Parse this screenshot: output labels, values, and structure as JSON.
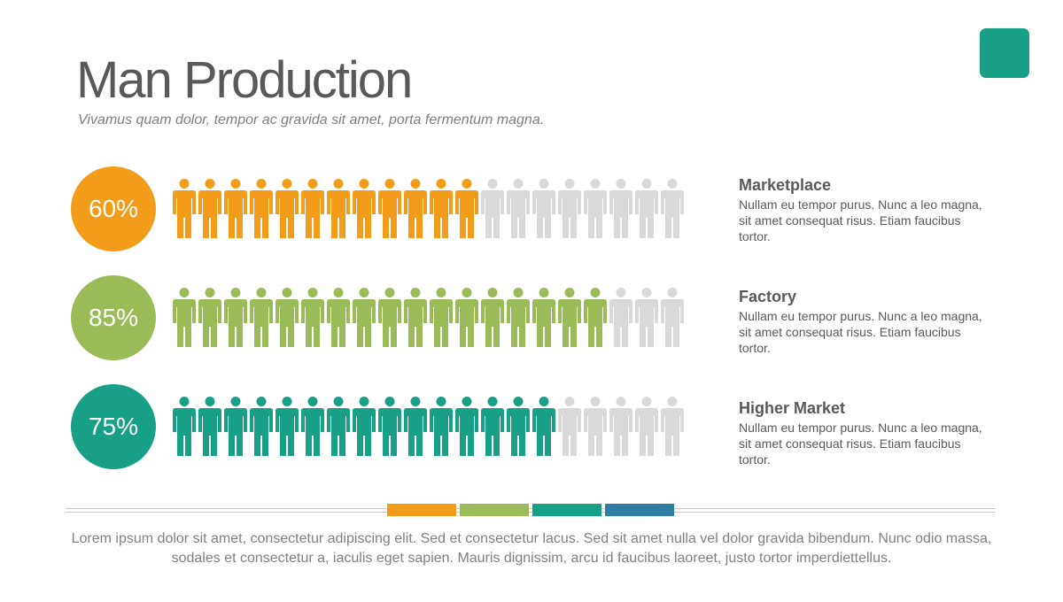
{
  "header": {
    "title": "Man Production",
    "subtitle": "Vivamus quam dolor, tempor ac gravida sit amet, porta fermentum magna."
  },
  "colors": {
    "orange": "#f39c1a",
    "green": "#9bbb59",
    "teal": "#17a085",
    "blue": "#2e7ea3",
    "inactive": "#d9d9d9",
    "accent_square": "#17a085"
  },
  "chart_data": {
    "type": "pictograph",
    "total_icons": 20,
    "rows": [
      {
        "label": "Marketplace",
        "percent_text": "60%",
        "percent": 60,
        "description": "Nullam eu tempor purus. Nunc a leo magna, sit amet consequat risus. Etiam faucibus tortor.",
        "color": "#f39c1a"
      },
      {
        "label": "Factory",
        "percent_text": "85%",
        "percent": 85,
        "description": "Nullam eu tempor purus. Nunc a leo magna, sit amet consequat risus. Etiam faucibus tortor.",
        "color": "#9bbb59"
      },
      {
        "label": "Higher Market",
        "percent_text": "75%",
        "percent": 75,
        "description": "Nullam eu tempor purus. Nunc a leo magna, sit amet consequat risus. Etiam faucibus tortor.",
        "color": "#17a085"
      }
    ]
  },
  "footer": {
    "text": "Lorem ipsum dolor sit amet, consectetur adipiscing elit. Sed et consectetur lacus. Sed sit amet nulla vel dolor gravida bibendum. Nunc odio massa, sodales et consectetur a, iaculis eget sapien. Mauris dignissim, arcu id faucibus laoreet, justo tortor imperdiettellus.",
    "strip_colors": [
      "#f39c1a",
      "#9bbb59",
      "#17a085",
      "#2e7ea3"
    ]
  }
}
